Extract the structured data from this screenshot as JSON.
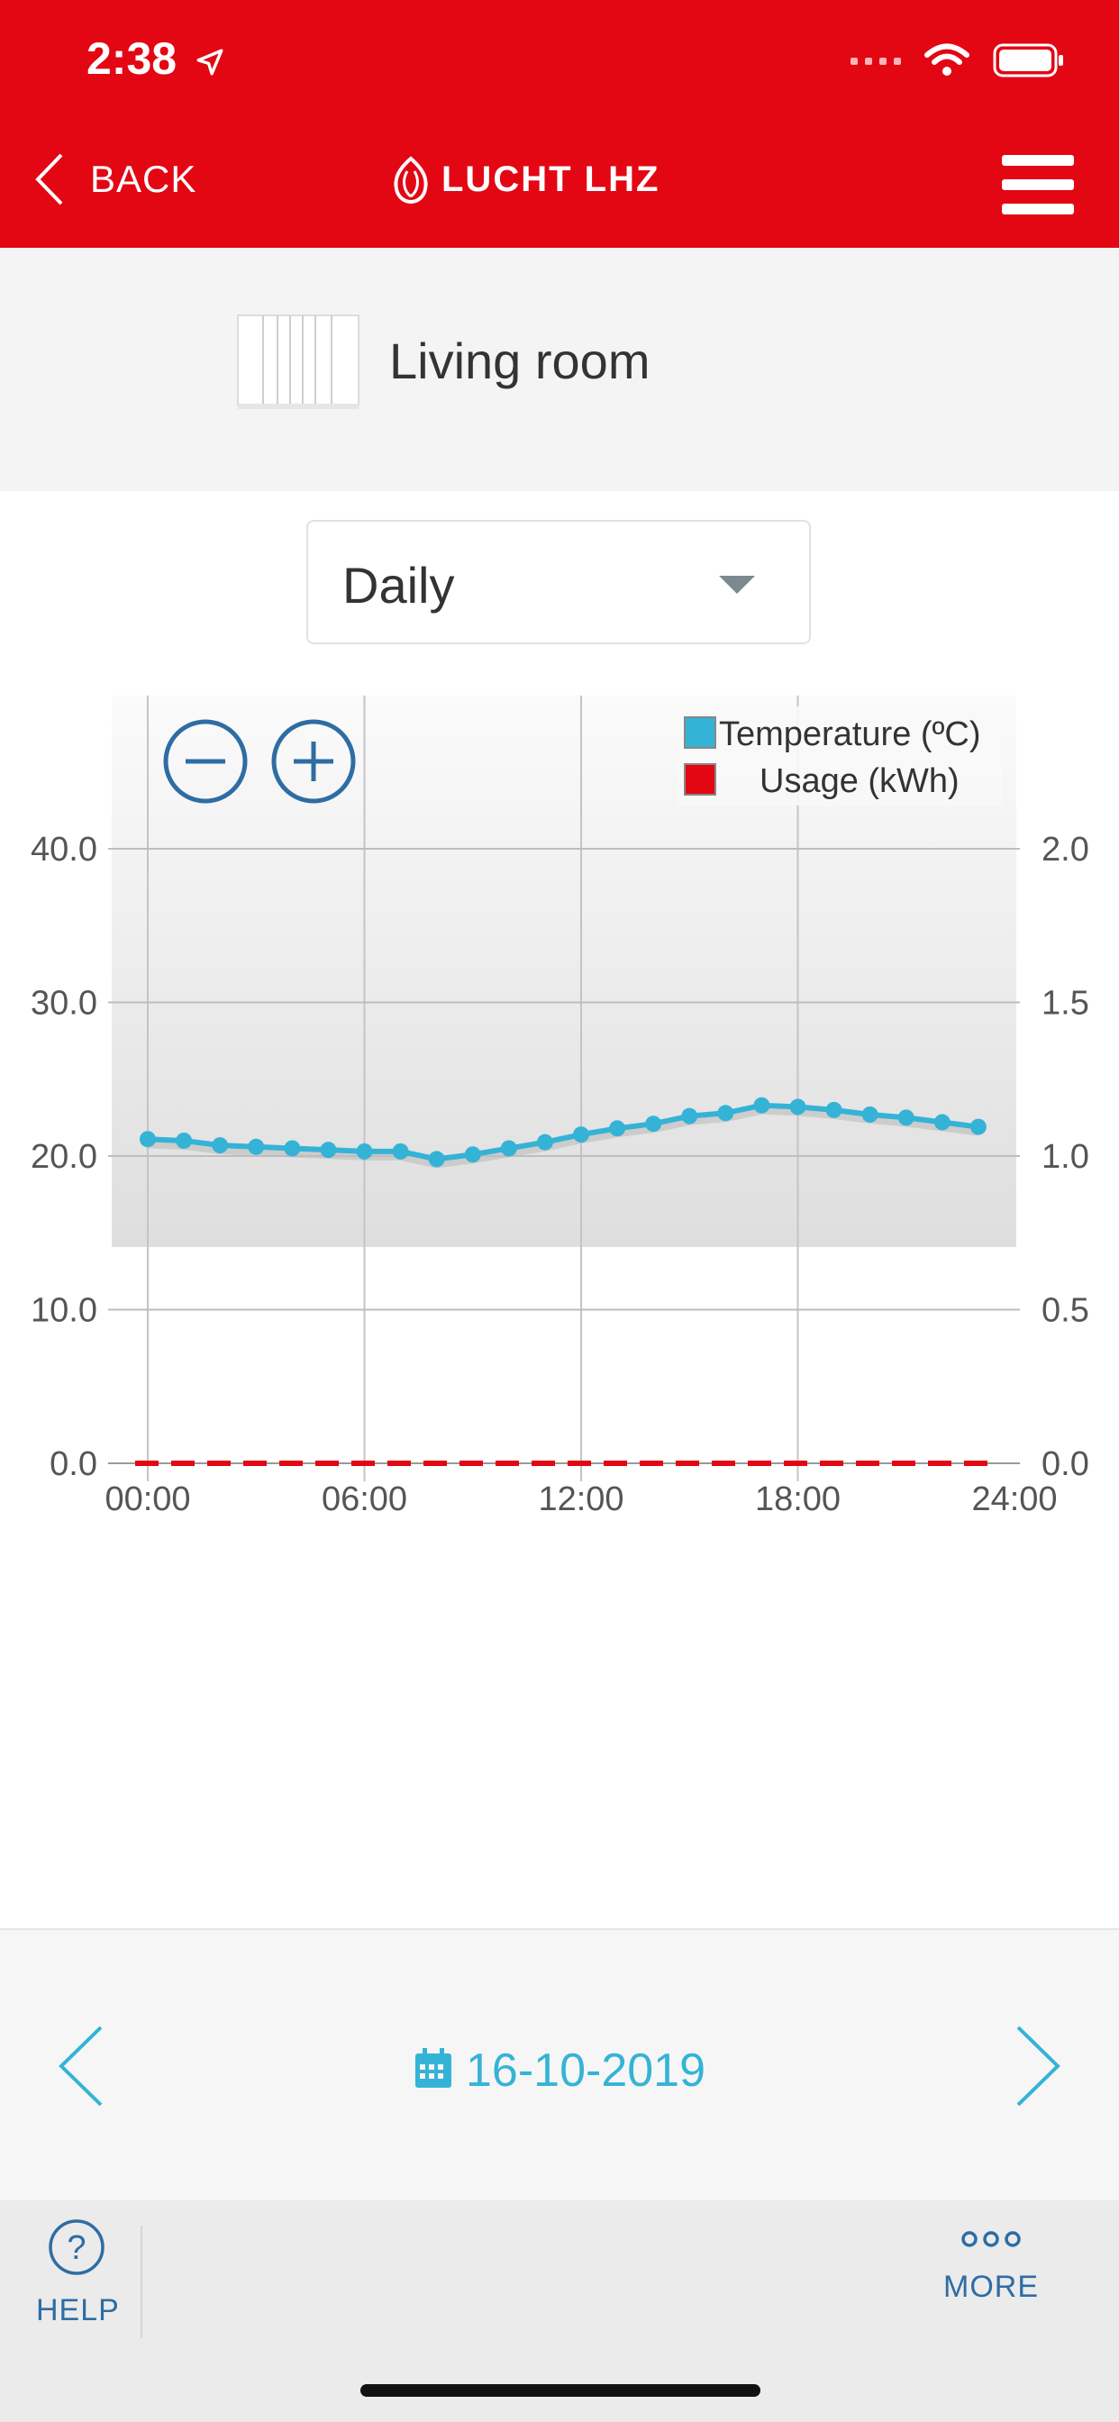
{
  "status": {
    "time": "2:38"
  },
  "header": {
    "back_label": "BACK",
    "logo_text": "LUCHT LHZ"
  },
  "room": {
    "name": "Living room"
  },
  "period": {
    "selected": "Daily"
  },
  "legend": {
    "temperature": "Temperature (ºC)",
    "usage": "Usage (kWh)"
  },
  "colors": {
    "brand_red": "#e30613",
    "temperature_line": "#35b3d6",
    "usage_line": "#e30613",
    "accent_blue": "#2e6da4"
  },
  "chart_data": {
    "type": "line",
    "x": [
      0,
      1,
      2,
      3,
      4,
      5,
      6,
      7,
      8,
      9,
      10,
      11,
      12,
      13,
      14,
      15,
      16,
      17,
      18,
      19,
      20,
      21,
      22,
      23
    ],
    "xticks": [
      "00:00",
      "06:00",
      "12:00",
      "18:00",
      "24:00"
    ],
    "xlim": [
      0,
      24
    ],
    "y_left_ticks": [
      "0.0",
      "10.0",
      "20.0",
      "30.0",
      "40.0"
    ],
    "y_right_ticks": [
      "0.0",
      "0.5",
      "1.0",
      "1.5",
      "2.0"
    ],
    "ylim_left": [
      0,
      40
    ],
    "ylim_right": [
      0,
      2
    ],
    "grid": true,
    "legend_position": "top-right",
    "series": [
      {
        "name": "Temperature (ºC)",
        "axis": "left",
        "values": [
          21.1,
          21.0,
          20.7,
          20.6,
          20.5,
          20.4,
          20.3,
          20.3,
          19.8,
          20.1,
          20.5,
          20.9,
          21.4,
          21.8,
          22.1,
          22.6,
          22.8,
          23.3,
          23.2,
          23.0,
          22.7,
          22.5,
          22.2,
          21.9
        ]
      },
      {
        "name": "Usage (kWh)",
        "axis": "right",
        "values": [
          0,
          0,
          0,
          0,
          0,
          0,
          0,
          0,
          0,
          0,
          0,
          0,
          0,
          0,
          0,
          0,
          0,
          0,
          0,
          0,
          0,
          0,
          0,
          0
        ]
      }
    ]
  },
  "date_nav": {
    "date": "16-10-2019"
  },
  "footer": {
    "help_label": "HELP",
    "more_label": "MORE"
  }
}
